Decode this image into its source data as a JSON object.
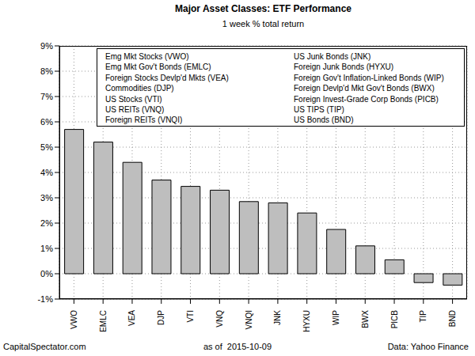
{
  "chart_data": {
    "type": "bar",
    "title": "Major Asset Classes: ETF Performance",
    "subtitle": "1 week % total return",
    "categories": [
      "VWO",
      "EMLC",
      "VEA",
      "DJP",
      "VTI",
      "VNQ",
      "VNQI",
      "JNK",
      "HYXU",
      "WIP",
      "BWX",
      "PICB",
      "TIP",
      "BND"
    ],
    "values": [
      5.7,
      5.2,
      4.4,
      3.7,
      3.45,
      3.3,
      2.85,
      2.8,
      2.4,
      1.75,
      1.1,
      0.55,
      -0.35,
      -0.45
    ],
    "descriptions": [
      "Emg Mkt Stocks (VWO)",
      "Emg Mkt Gov't Bonds (EMLC)",
      "Foreign Stocks Devlp'd Mkts (VEA)",
      "Commodities (DJP)",
      "US Stocks (VTI)",
      "US REITs (VNQ)",
      "Foreign REITs (VNQI)",
      "US Junk Bonds (JNK)",
      "Foreign Junk Bonds (HYXU)",
      "Foreign Gov't Inflation-Linked Bonds (WIP)",
      "Foreign Devlp'd Mkt Gov't Bonds (BWX)",
      "Foreign Invest-Grade Corp Bonds (PICB)",
      "US TIPS (TIP)",
      "US Bonds (BND)"
    ],
    "annotations": [
      "CapitalSpectator.com",
      "as of  2015-10-09",
      "Data: Yahoo Finance"
    ],
    "color": "#bebebe",
    "ylim": [
      -1,
      9
    ],
    "yticks": [
      {
        "value": -1,
        "label": "-1%"
      },
      {
        "value": 0,
        "label": "0%"
      },
      {
        "value": 1,
        "label": "1%"
      },
      {
        "value": 2,
        "label": "2%"
      },
      {
        "value": 3,
        "label": "3%"
      },
      {
        "value": 4,
        "label": "4%"
      },
      {
        "value": 5,
        "label": "5%"
      },
      {
        "value": 6,
        "label": "6%"
      },
      {
        "value": 7,
        "label": "7%"
      },
      {
        "value": 8,
        "label": "8%"
      },
      {
        "value": 9,
        "label": "9%"
      }
    ],
    "grid": true
  }
}
